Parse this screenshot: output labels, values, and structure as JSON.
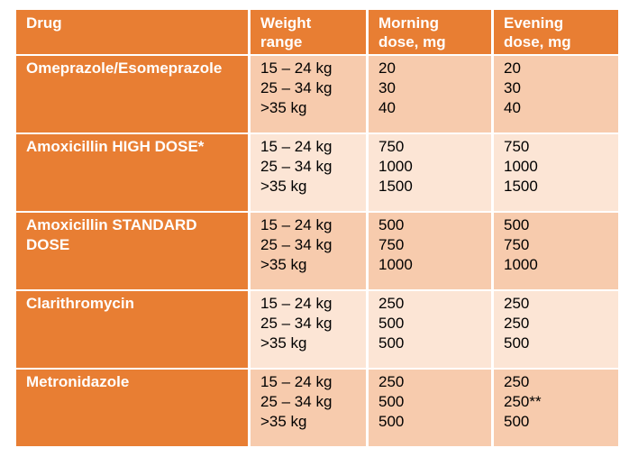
{
  "colors": {
    "header_bg": "#E87E33",
    "row_band_dark": "#F7CBAD",
    "row_band_light": "#FCE5D5",
    "header_text": "#FFFFFF",
    "cell_text": "#000000",
    "page_bg": "#FFFFFF"
  },
  "table": {
    "columns": [
      {
        "id": "drug",
        "lines": [
          "Drug",
          ""
        ]
      },
      {
        "id": "weight_range",
        "lines": [
          "Weight",
          "range"
        ]
      },
      {
        "id": "morning_dose",
        "lines": [
          "Morning",
          "dose, mg"
        ]
      },
      {
        "id": "evening_dose",
        "lines": [
          "Evening",
          "dose, mg"
        ]
      }
    ],
    "rows": [
      {
        "drug": "Omeprazole/Esomeprazole",
        "weights": [
          "15 – 24 kg",
          "25 – 34 kg",
          ">35 kg"
        ],
        "morning": [
          "20",
          "30",
          "40"
        ],
        "evening": [
          "20",
          "30",
          "40"
        ]
      },
      {
        "drug": "Amoxicillin HIGH DOSE*",
        "weights": [
          "15 – 24 kg",
          "25 – 34 kg",
          ">35 kg"
        ],
        "morning": [
          "750",
          "1000",
          "1500"
        ],
        "evening": [
          "750",
          "1000",
          "1500"
        ]
      },
      {
        "drug": "Amoxicillin STANDARD DOSE",
        "weights": [
          "15 – 24 kg",
          "25 – 34 kg",
          ">35 kg"
        ],
        "morning": [
          "500",
          "750",
          "1000"
        ],
        "evening": [
          "500",
          "750",
          "1000"
        ]
      },
      {
        "drug": "Clarithromycin",
        "weights": [
          "15 – 24 kg",
          "25 – 34 kg",
          ">35 kg"
        ],
        "morning": [
          "250",
          "500",
          "500"
        ],
        "evening": [
          "250",
          "250",
          "500"
        ]
      },
      {
        "drug": "Metronidazole",
        "weights": [
          "15 – 24 kg",
          "25 – 34 kg",
          ">35 kg"
        ],
        "morning": [
          "250",
          "500",
          "500"
        ],
        "evening": [
          "250",
          "250**",
          "500"
        ]
      }
    ]
  }
}
